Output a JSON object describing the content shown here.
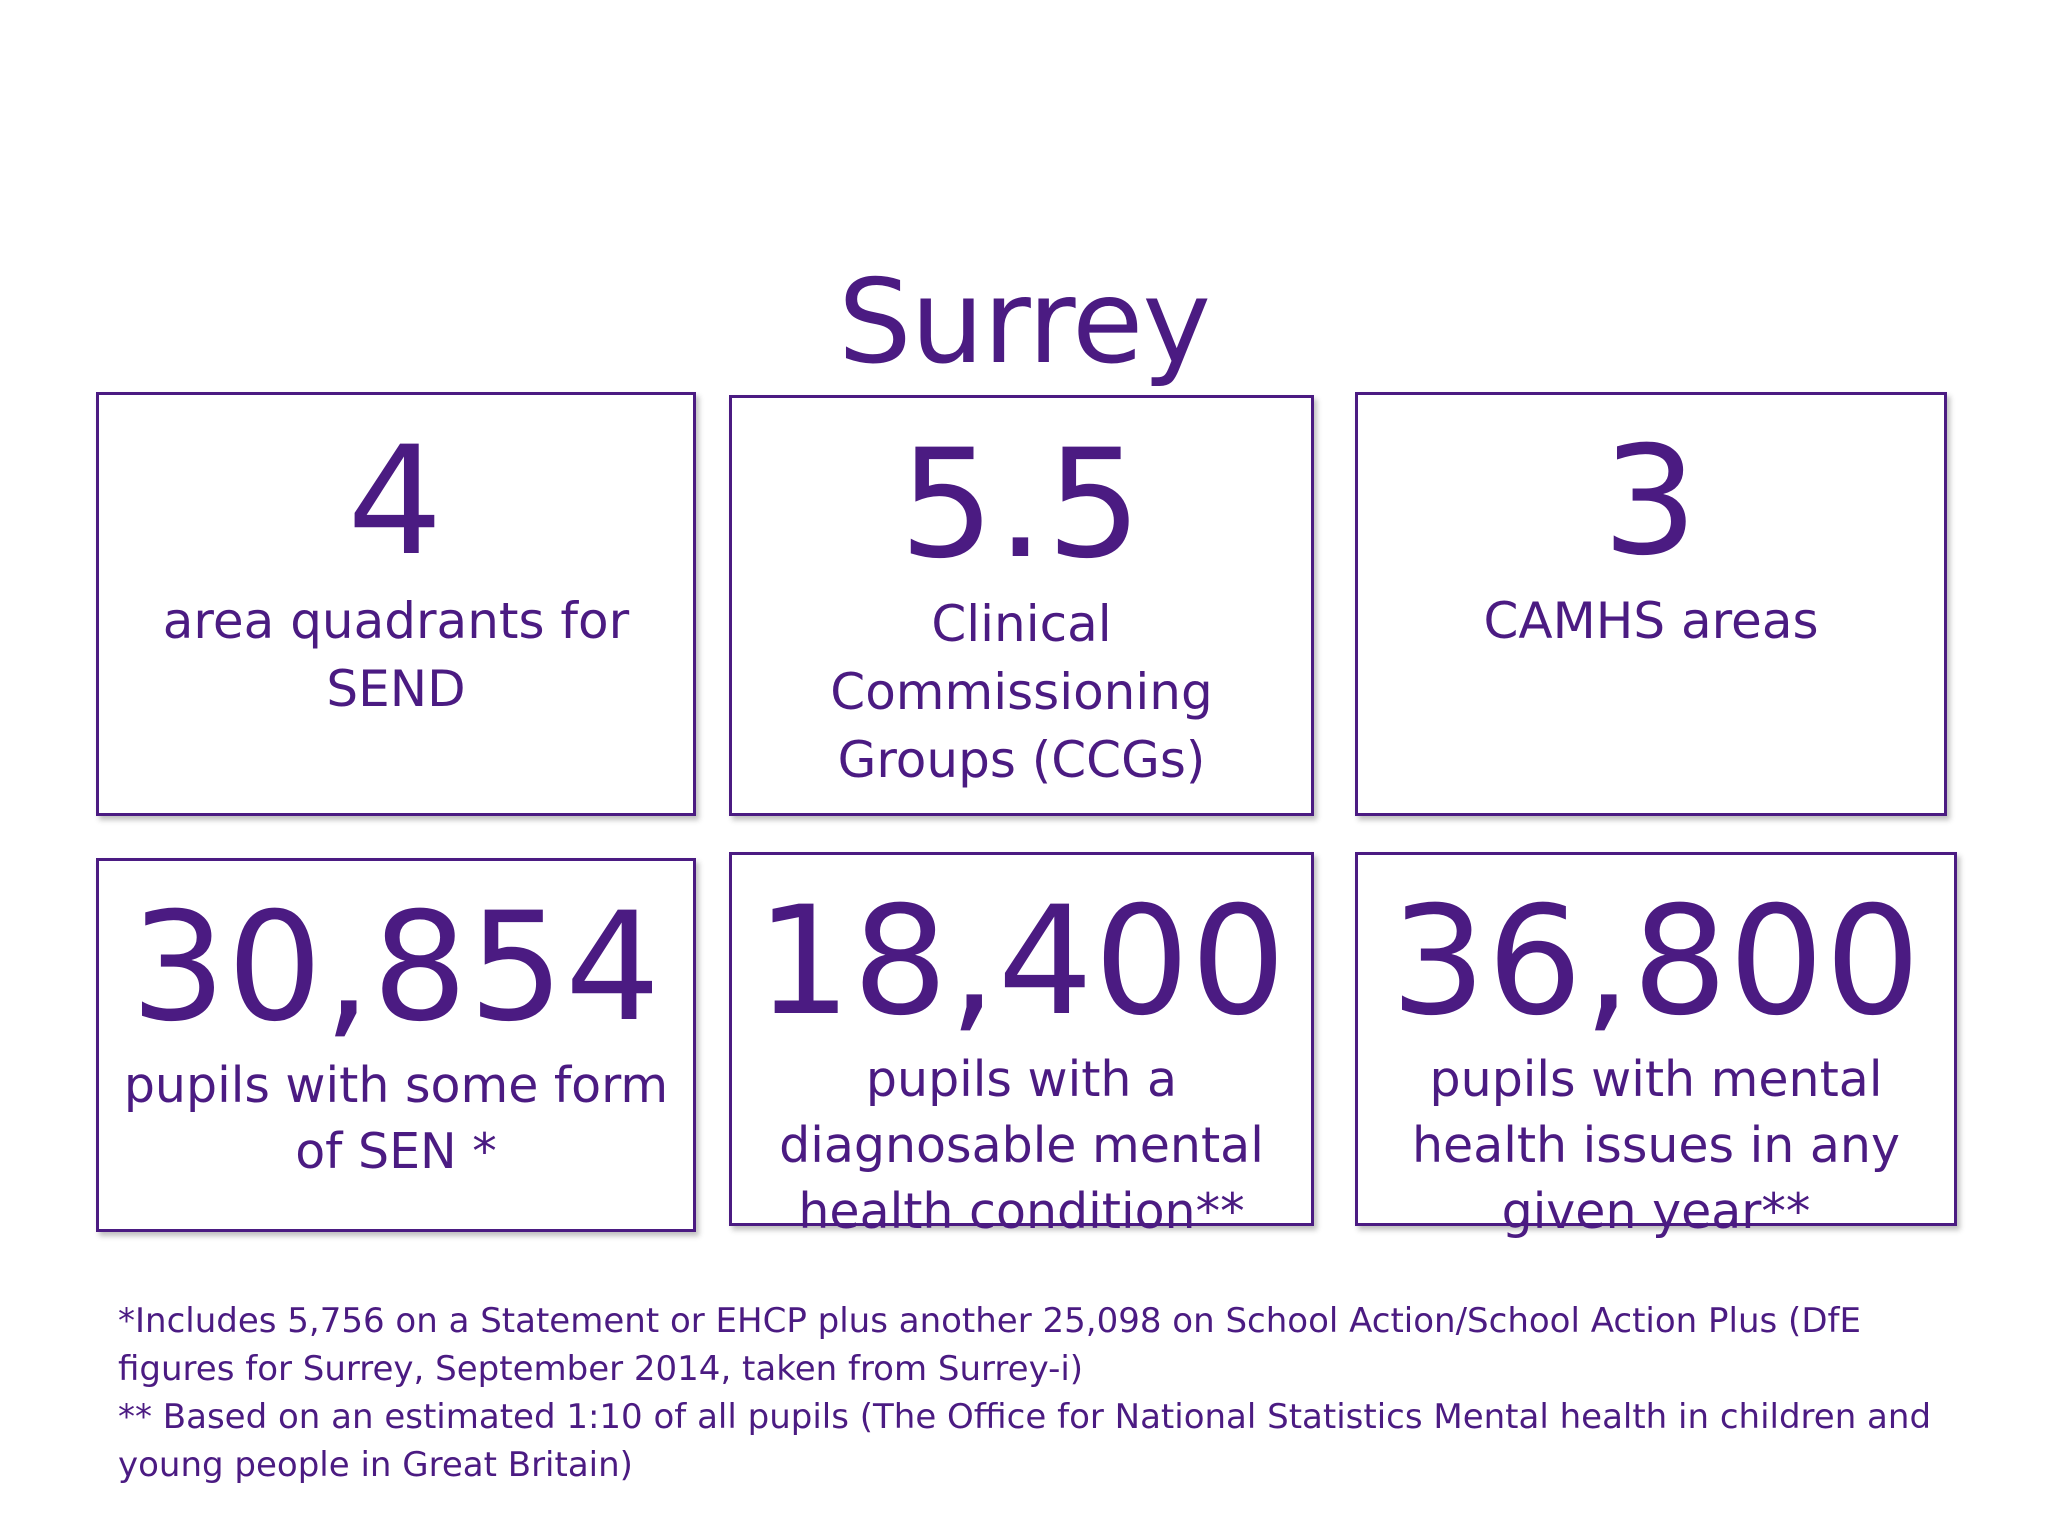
{
  "title": "Surrey",
  "stats": [
    {
      "value": "4",
      "label": "area quadrants for SEND"
    },
    {
      "value": "5.5",
      "label": "Clinical Commissioning Groups (CCGs)"
    },
    {
      "value": "3",
      "label": "CAMHS areas"
    },
    {
      "value": "30,854",
      "label": "pupils with some form of SEN *"
    },
    {
      "value": "18,400",
      "label": "pupils with a diagnosable mental health condition**"
    },
    {
      "value": "36,800",
      "label": "pupils with mental health issues in any given year**"
    }
  ],
  "footnotes": [
    "*Includes 5,756 on a Statement or EHCP plus another 25,098 on School Action/School Action Plus (DfE figures for Surrey, September 2014, taken from Surrey-i)",
    "** Based on an estimated 1:10 of all pupils (The Office for National Statistics Mental health in children and young people in Great Britain)"
  ],
  "colors": {
    "accent": "#4b1b82",
    "background": "#ffffff"
  }
}
